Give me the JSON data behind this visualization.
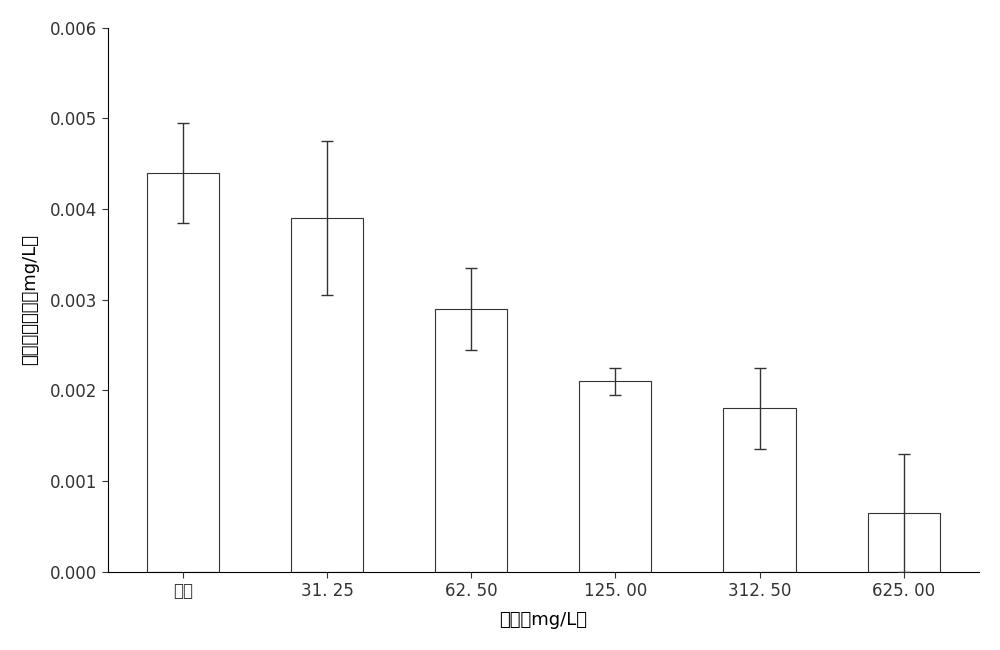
{
  "categories": [
    "对照",
    "31. 25",
    "62. 50",
    "125. 00",
    "312. 50",
    "625. 00"
  ],
  "values": [
    0.0044,
    0.0039,
    0.0029,
    0.0021,
    0.0018,
    0.00065
  ],
  "errors": [
    0.00055,
    0.00085,
    0.00045,
    0.00015,
    0.00045,
    0.00065
  ],
  "bar_color": "#ffffff",
  "bar_edgecolor": "#333333",
  "errorbar_color": "#333333",
  "xlabel": "浓度（mg/L）",
  "ylabel": "藻蓝蛋白含量（mg/L）",
  "ylim": [
    0.0,
    0.006
  ],
  "yticks": [
    0.0,
    0.001,
    0.002,
    0.003,
    0.004,
    0.005,
    0.006
  ],
  "ytick_labels": [
    "0.000",
    "0.001",
    "0.002",
    "0.003",
    "0.004",
    "0.005",
    "0.006"
  ],
  "background_color": "#ffffff",
  "bar_width": 0.5,
  "title_fontsize": 13,
  "label_fontsize": 13,
  "tick_fontsize": 12
}
